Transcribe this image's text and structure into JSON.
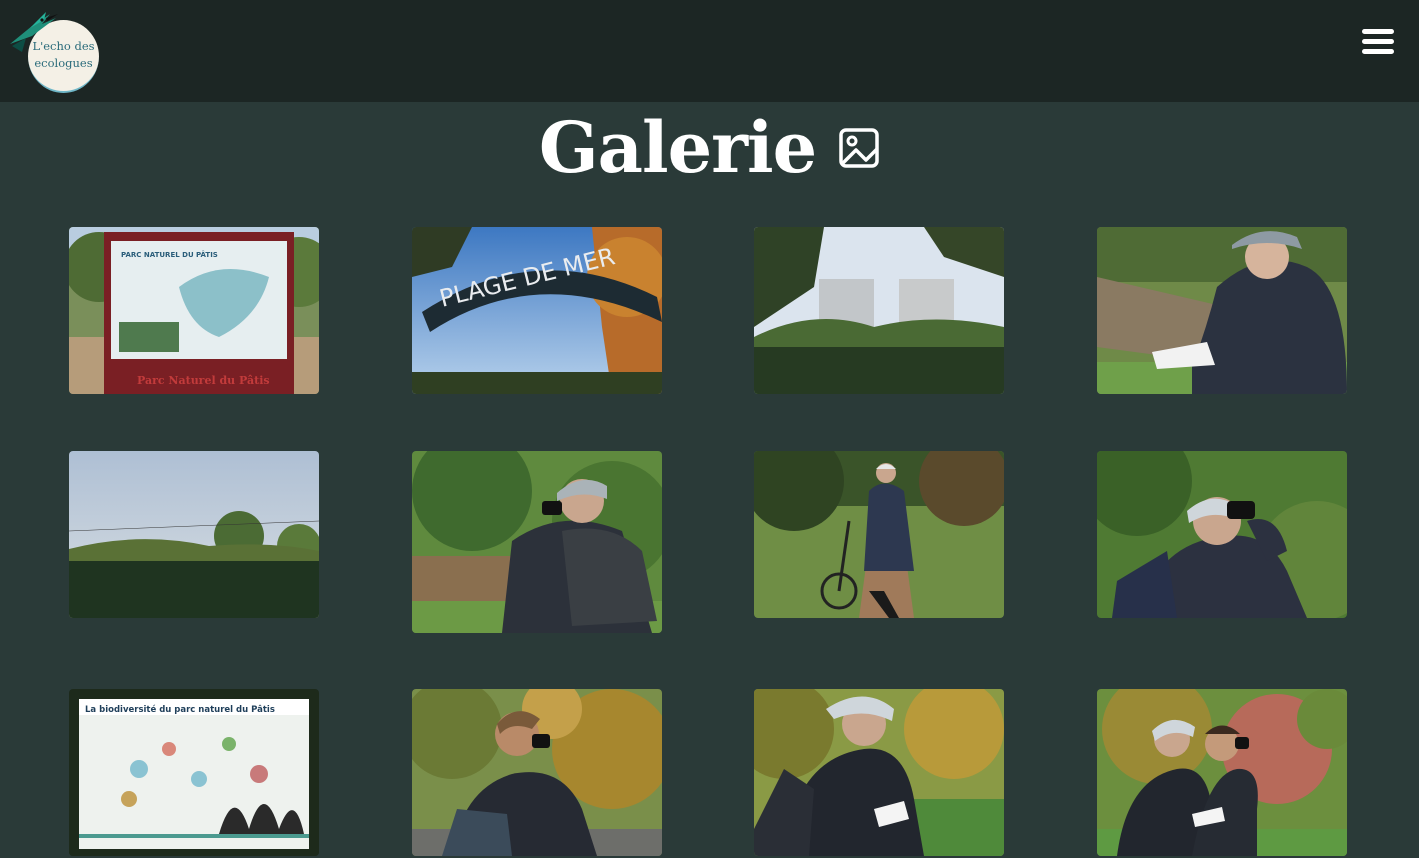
{
  "header": {
    "logo_line1": "L'echo des",
    "logo_line2": "ecologues",
    "menu_icon": "hamburger-menu-icon"
  },
  "page": {
    "title": "Galerie",
    "title_icon": "image-icon"
  },
  "gallery": {
    "items": [
      {
        "caption": "PARC NATUREL DU PÂTIS",
        "sign_text": "Parc Naturel du Pâtis",
        "description": "park information sign"
      },
      {
        "caption": "PLAGE DE MER",
        "description": "arch sign against sky"
      },
      {
        "caption": "",
        "description": "tower buildings behind hedge"
      },
      {
        "caption": "",
        "description": "man reading notebook"
      },
      {
        "caption": "",
        "description": "field with hedge and sky"
      },
      {
        "caption": "",
        "description": "man with binoculars and backpack"
      },
      {
        "caption": "",
        "description": "man walking with bicycle on path"
      },
      {
        "caption": "",
        "description": "man looking through binoculars"
      },
      {
        "caption": "La biodiversité du parc naturel du Pâtis",
        "description": "biodiversity information board"
      },
      {
        "caption": "",
        "description": "person using binoculars near trees"
      },
      {
        "caption": "",
        "description": "man writing in notebook"
      },
      {
        "caption": "",
        "description": "two men birdwatching"
      }
    ]
  },
  "colors": {
    "navbar": "#1c2624",
    "background": "#2a3a38",
    "text": "#ffffff",
    "accent": "#2a6b7a"
  }
}
